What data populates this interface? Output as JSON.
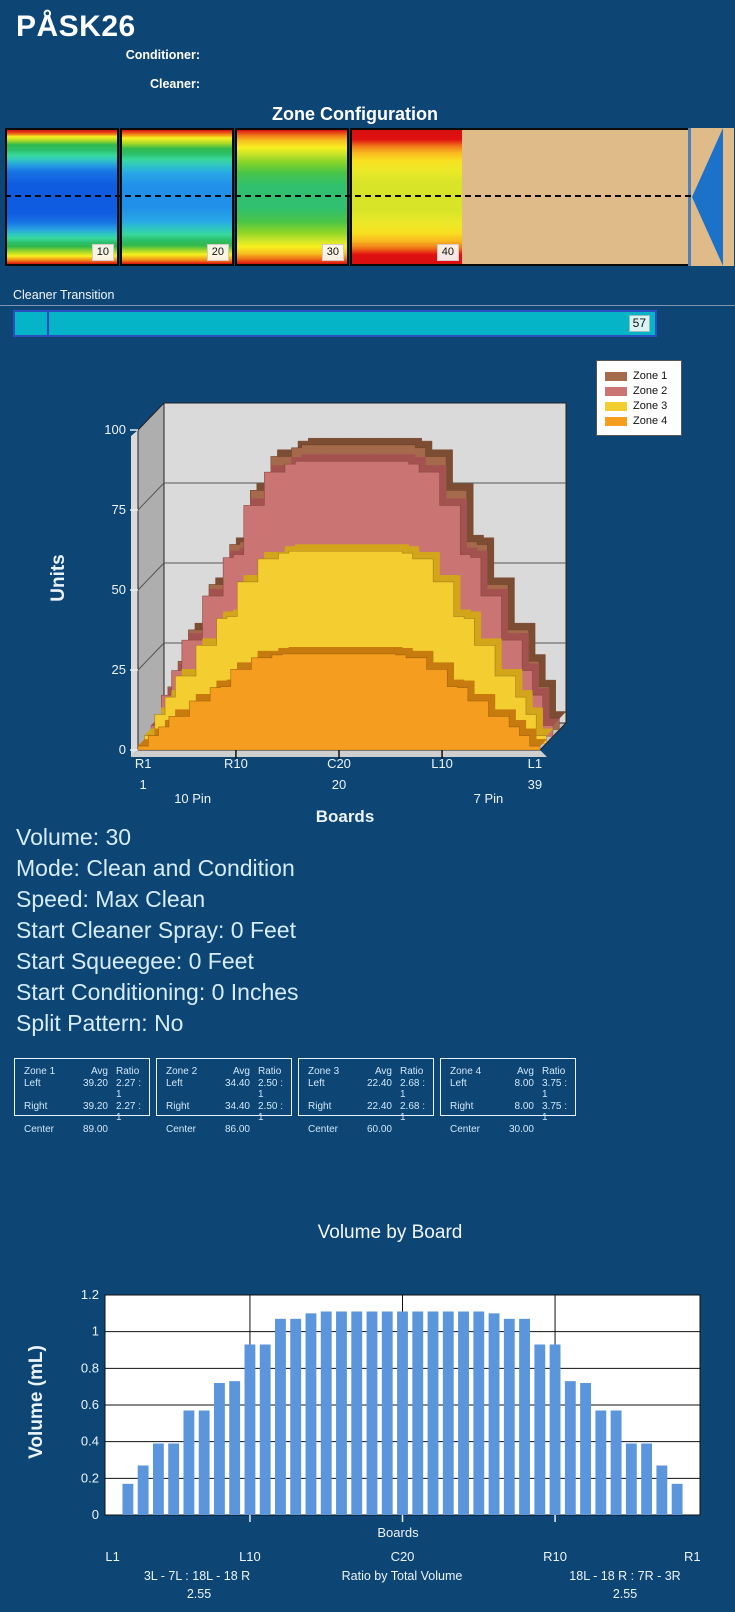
{
  "header": {
    "title": "PÅSK26",
    "fields": [
      {
        "label": "Conditioner:",
        "value": ""
      },
      {
        "label": "Cleaner:",
        "value": ""
      }
    ]
  },
  "zone_configuration": {
    "title": "Zone Configuration",
    "lane_color": "#dfbb8a",
    "arrow_color": "#1b72c8",
    "zones": [
      {
        "distance_label": "10",
        "gradient": [
          "#d81010 0%",
          "#e85818 2.5%",
          "#f8f020 5%",
          "#a8d828 8%",
          "#30b84c 11%",
          "#2cc06c 15%",
          "#38d89c 19%",
          "#30c8c0 22%",
          "#28a0e0 26%",
          "#1874e4 31%",
          "#105ce0 40%",
          "#105ce0 62%",
          "#1874e4 69%",
          "#28a0e0 74%",
          "#30c8c0 78%",
          "#38d89c 81%",
          "#2cc06c 84%",
          "#30b84c 87%",
          "#a8d828 91%",
          "#f8f020 94%",
          "#f09018 97%",
          "#d81010 100%"
        ]
      },
      {
        "distance_label": "20",
        "gradient": [
          "#d81010 0%",
          "#f07818 3%",
          "#f8f020 6%",
          "#a8d828 10%",
          "#30b84c 14%",
          "#2cc06c 18%",
          "#38d89c 22%",
          "#30c8c0 26%",
          "#28a8e8 32%",
          "#2090e8 42%",
          "#2090e8 58%",
          "#28a8e8 68%",
          "#30c8c0 74%",
          "#38d89c 78%",
          "#2cc06c 82%",
          "#30b84c 86%",
          "#a8d828 90%",
          "#f8f020 93%",
          "#f09018 97%",
          "#d81010 100%"
        ]
      },
      {
        "distance_label": "30",
        "gradient": [
          "#d81010 0%",
          "#f07818 4%",
          "#f8c020 8%",
          "#f8f020 13%",
          "#c8e428 18%",
          "#88d428 24%",
          "#48c448 32%",
          "#30c070 42%",
          "#30c070 58%",
          "#48c448 68%",
          "#88d428 76%",
          "#c8e428 82%",
          "#f8f020 87%",
          "#f8c020 92%",
          "#f07818 96%",
          "#d81010 100%"
        ]
      },
      {
        "distance_label": "40",
        "gradient": [
          "#d81010 0%",
          "#e01010 7%",
          "#f07818 12%",
          "#f8b820 17%",
          "#f8e020 23%",
          "#ece828 30%",
          "#d8e428 40%",
          "#d8e428 60%",
          "#ece828 70%",
          "#f8e020 77%",
          "#f8b820 83%",
          "#f07818 88%",
          "#e01010 93%",
          "#d81010 100%"
        ]
      }
    ]
  },
  "cleaner_transition": {
    "label": "Cleaner Transition",
    "value": "57",
    "bar_color": "#06b4c8",
    "border_color": "#2a4ec0"
  },
  "chart_data": [
    {
      "type": "area3d",
      "title": "",
      "ylabel": "Units",
      "xlabel": "Boards",
      "ylim": [
        0,
        100
      ],
      "yticks": [
        0,
        25,
        50,
        75,
        100
      ],
      "board_count": 39,
      "x_primary_ticks": [
        "R1",
        "R10",
        "C20",
        "L10",
        "L1"
      ],
      "x_secondary_ticks": [
        "1",
        "10 Pin",
        "20",
        "7 Pin",
        "39"
      ],
      "legend_position": "top-right",
      "series": [
        {
          "name": "Zone 1",
          "color": "#a56a4c",
          "band_color": "#7c4c33",
          "center_total": 89,
          "values": [
            3.6,
            13.4,
            21.4,
            31.2,
            31.2,
            45.4,
            45.4,
            57.9,
            58.7,
            74.8,
            74.8,
            85.4,
            85.4,
            88.1,
            89,
            89,
            89,
            89,
            89,
            89,
            89,
            89,
            89,
            89,
            89,
            88.1,
            85.4,
            85.4,
            74.8,
            74.8,
            58.7,
            57.9,
            45.4,
            45.4,
            31.2,
            31.2,
            21.4,
            13.4,
            3.6
          ]
        },
        {
          "name": "Zone 2",
          "color": "#ca7473",
          "band_color": "#a4524f",
          "center_total": 86,
          "values": [
            3.4,
            12.9,
            20.6,
            30.1,
            30.1,
            43.9,
            43.9,
            55.9,
            56.8,
            72.2,
            72.2,
            82.6,
            82.6,
            85.1,
            86,
            86,
            86,
            86,
            86,
            86,
            86,
            86,
            86,
            86,
            86,
            85.1,
            82.6,
            82.6,
            72.2,
            72.2,
            56.8,
            55.9,
            43.9,
            43.9,
            30.1,
            30.1,
            20.6,
            12.9,
            3.4
          ]
        },
        {
          "name": "Zone 3",
          "color": "#f4cd30",
          "band_color": "#d2a51a",
          "center_total": 60,
          "values": [
            2.4,
            9,
            14.4,
            21,
            21,
            30.6,
            30.6,
            39,
            39.6,
            50.4,
            50.4,
            57.6,
            57.6,
            59.4,
            60,
            60,
            60,
            60,
            60,
            60,
            60,
            60,
            60,
            60,
            60,
            59.4,
            57.6,
            57.6,
            50.4,
            50.4,
            39.6,
            39,
            30.6,
            30.6,
            21,
            21,
            14.4,
            9,
            2.4
          ]
        },
        {
          "name": "Zone 4",
          "color": "#f49d1e",
          "band_color": "#c77a0d",
          "center_total": 30,
          "values": [
            1.2,
            4.5,
            7.2,
            10.5,
            10.5,
            15.3,
            15.3,
            19.5,
            19.8,
            25.2,
            25.2,
            28.8,
            28.8,
            29.7,
            30,
            30,
            30,
            30,
            30,
            30,
            30,
            30,
            30,
            30,
            30,
            29.7,
            28.8,
            28.8,
            25.2,
            25.2,
            19.8,
            19.5,
            15.3,
            15.3,
            10.5,
            10.5,
            7.2,
            4.5,
            1.2
          ]
        }
      ]
    },
    {
      "type": "bar",
      "title": "Volume by Board",
      "xlabel": "Boards",
      "ylabel": "Volume (mL)",
      "ylim": [
        0,
        1.2
      ],
      "ytick_labels": [
        "0",
        "0.2",
        "0.4",
        "0.6",
        "0.8",
        "1",
        "1.2"
      ],
      "bar_color": "#5b96dc",
      "board_count": 39,
      "x_ticks": [
        "L1",
        "L10",
        "C20",
        "R10",
        "R1"
      ],
      "x_tick_boards": [
        1,
        10,
        20,
        30,
        39
      ],
      "values": [
        0,
        0.17,
        0.27,
        0.39,
        0.39,
        0.57,
        0.57,
        0.72,
        0.73,
        0.93,
        0.93,
        1.07,
        1.07,
        1.1,
        1.11,
        1.11,
        1.11,
        1.11,
        1.11,
        1.11,
        1.11,
        1.11,
        1.11,
        1.11,
        1.11,
        1.1,
        1.07,
        1.07,
        0.93,
        0.93,
        0.73,
        0.72,
        0.57,
        0.57,
        0.39,
        0.39,
        0.27,
        0.17,
        0
      ],
      "footnotes": {
        "left_ratio": "3L - 7L : 18L - 18 R",
        "left_value": "2.55",
        "center": "Ratio by Total Volume",
        "right_ratio": "18L - 18 R : 7R - 3R",
        "right_value": "2.55"
      }
    }
  ],
  "info": {
    "lines": [
      "Volume: 30",
      "Mode: Clean and Condition",
      "Speed: Max Clean",
      "Start Cleaner Spray: 0 Feet",
      "Start Squeegee: 0 Feet",
      "Start Conditioning: 0 Inches",
      "Split Pattern: No"
    ]
  },
  "zone_stats": {
    "headers": {
      "avg": "Avg",
      "ratio": "Ratio"
    },
    "row_labels": {
      "left": "Left",
      "right": "Right",
      "center": "Center"
    },
    "zones": [
      {
        "name": "Zone 1",
        "left_avg": "39.20",
        "left_ratio": "2.27 : 1",
        "right_avg": "39.20",
        "right_ratio": "2.27 : 1",
        "center_avg": "89.00"
      },
      {
        "name": "Zone 2",
        "left_avg": "34.40",
        "left_ratio": "2.50 : 1",
        "right_avg": "34.40",
        "right_ratio": "2.50 : 1",
        "center_avg": "86.00"
      },
      {
        "name": "Zone 3",
        "left_avg": "22.40",
        "left_ratio": "2.68 : 1",
        "right_avg": "22.40",
        "right_ratio": "2.68 : 1",
        "center_avg": "60.00"
      },
      {
        "name": "Zone 4",
        "left_avg": "8.00",
        "left_ratio": "3.75 : 1",
        "right_avg": "8.00",
        "right_ratio": "3.75 : 1",
        "center_avg": "30.00"
      }
    ]
  }
}
